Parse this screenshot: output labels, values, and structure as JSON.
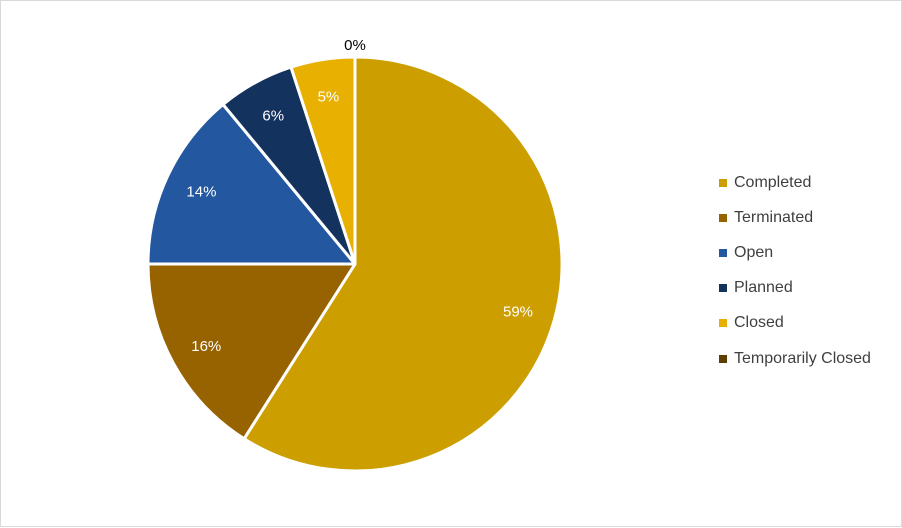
{
  "chart_data": {
    "type": "pie",
    "categories": [
      "Completed",
      "Terminated",
      "Open",
      "Planned",
      "Closed",
      "Temporarily Closed"
    ],
    "values": [
      59,
      16,
      14,
      6,
      5,
      0
    ],
    "labels": [
      "59%",
      "16%",
      "14%",
      "6%",
      "5%",
      "0%"
    ],
    "colors": [
      "#CC9E00",
      "#976200",
      "#23579F",
      "#14325E",
      "#E8B000",
      "#5E3E00"
    ],
    "label_colors": [
      "#ffffff",
      "#ffffff",
      "#ffffff",
      "#ffffff",
      "#ffffff",
      "#000000"
    ],
    "legend": {
      "position": "right"
    },
    "start": "top",
    "direction": "clockwise"
  }
}
